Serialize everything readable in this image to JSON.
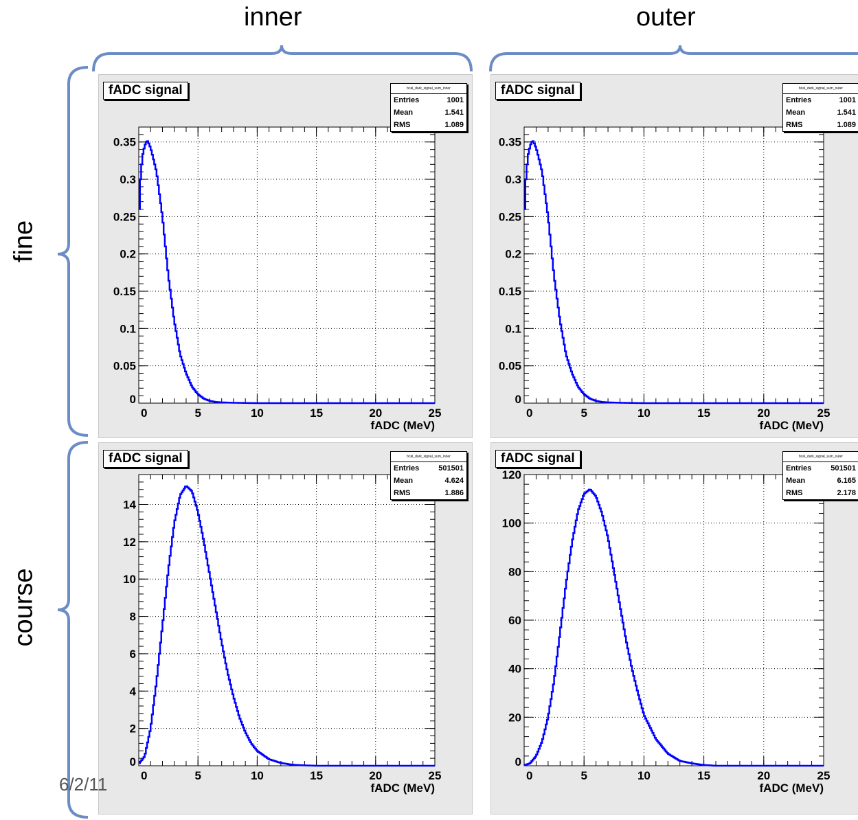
{
  "labels": {
    "col_inner": "inner",
    "col_outer": "outer",
    "row_fine": "fine",
    "row_course": "course",
    "date": "6/2/11"
  },
  "table_fragment": [
    "f",
    "f",
    "c",
    "c"
  ],
  "colors": {
    "line": "#0000ff",
    "bracket": "#6b8cc4",
    "frame": "#e8e8e8"
  },
  "chart_data": [
    {
      "type": "line",
      "title": "fADC signal",
      "stats": {
        "name": "bcal_dark_signal_sum_inner",
        "Entries": "1001",
        "Mean": "1.541",
        "RMS": "1.089"
      },
      "xlabel": "fADC (MeV)",
      "ylabel": "",
      "xlim": [
        0,
        25
      ],
      "ylim": [
        0,
        0.37
      ],
      "xticks": [
        "0",
        "5",
        "10",
        "15",
        "20",
        "25"
      ],
      "yticks": [
        [
          "0",
          0
        ],
        [
          "0.05",
          0.05
        ],
        [
          "0.1",
          0.1
        ],
        [
          "0.15",
          0.15
        ],
        [
          "0.2",
          0.2
        ],
        [
          "0.25",
          0.25
        ],
        [
          "0.3",
          0.3
        ],
        [
          "0.35",
          0.35
        ]
      ],
      "grid": true,
      "series": [
        {
          "shape": "fine",
          "x": [
            0,
            0.1,
            0.3,
            0.5,
            0.7,
            0.8,
            1.0,
            1.2,
            1.5,
            2,
            2.5,
            3,
            3.5,
            4,
            4.5,
            5,
            5.5,
            6,
            6.5,
            7,
            8,
            10,
            25
          ],
          "y": [
            0.23,
            0.29,
            0.33,
            0.345,
            0.352,
            0.35,
            0.342,
            0.33,
            0.31,
            0.25,
            0.17,
            0.11,
            0.065,
            0.04,
            0.022,
            0.012,
            0.006,
            0.003,
            0.0015,
            0.001,
            0.0005,
            0,
            0
          ]
        }
      ]
    },
    {
      "type": "line",
      "title": "fADC signal",
      "stats": {
        "name": "bcal_dark_signal_sum_outer",
        "Entries": "1001",
        "Mean": "1.541",
        "RMS": "1.089"
      },
      "xlabel": "fADC (MeV)",
      "ylabel": "",
      "xlim": [
        0,
        25
      ],
      "ylim": [
        0,
        0.37
      ],
      "xticks": [
        "0",
        "5",
        "10",
        "15",
        "20",
        "25"
      ],
      "yticks": [
        [
          "0",
          0
        ],
        [
          "0.05",
          0.05
        ],
        [
          "0.1",
          0.1
        ],
        [
          "0.15",
          0.15
        ],
        [
          "0.2",
          0.2
        ],
        [
          "0.25",
          0.25
        ],
        [
          "0.3",
          0.3
        ],
        [
          "0.35",
          0.35
        ]
      ],
      "grid": true,
      "series": [
        {
          "shape": "fine",
          "x": [
            0,
            0.1,
            0.3,
            0.5,
            0.7,
            0.8,
            1.0,
            1.2,
            1.5,
            2,
            2.5,
            3,
            3.5,
            4,
            4.5,
            5,
            5.5,
            6,
            6.5,
            7,
            8,
            10,
            25
          ],
          "y": [
            0.23,
            0.29,
            0.33,
            0.345,
            0.352,
            0.35,
            0.342,
            0.33,
            0.31,
            0.25,
            0.17,
            0.11,
            0.065,
            0.04,
            0.022,
            0.012,
            0.006,
            0.003,
            0.0015,
            0.001,
            0.0005,
            0,
            0
          ]
        }
      ]
    },
    {
      "type": "line",
      "title": "fADC signal",
      "stats": {
        "name": "bcal_dark_signal_sum_inner",
        "Entries": "501501",
        "Mean": "4.624",
        "RMS": "1.886"
      },
      "xlabel": "fADC (MeV)",
      "ylabel": "",
      "xlim": [
        0,
        25
      ],
      "ylim": [
        0,
        15.6
      ],
      "xticks": [
        "0",
        "5",
        "10",
        "15",
        "20",
        "25"
      ],
      "yticks": [
        [
          "0",
          0
        ],
        [
          "2",
          2
        ],
        [
          "4",
          4
        ],
        [
          "6",
          6
        ],
        [
          "8",
          8
        ],
        [
          "10",
          10
        ],
        [
          "12",
          12
        ],
        [
          "14",
          14
        ]
      ],
      "grid": true,
      "series": [
        {
          "shape": "course",
          "x": [
            0,
            0.5,
            1,
            1.5,
            2,
            2.5,
            3,
            3.5,
            4,
            4.5,
            5,
            5.5,
            6,
            6.5,
            7,
            7.5,
            8,
            8.5,
            9,
            9.5,
            10,
            11,
            12,
            13,
            14,
            15,
            25
          ],
          "y": [
            0.1,
            0.5,
            2.0,
            4.5,
            7.5,
            10.5,
            13.0,
            14.5,
            15.0,
            14.7,
            13.6,
            12.0,
            10.2,
            8.4,
            6.6,
            5.0,
            3.7,
            2.6,
            1.8,
            1.2,
            0.8,
            0.35,
            0.15,
            0.05,
            0.02,
            0,
            0
          ]
        }
      ]
    },
    {
      "type": "line",
      "title": "fADC signal",
      "stats": {
        "name": "bcal_dark_signal_sum_outer",
        "Entries": "501501",
        "Mean": "6.165",
        "RMS": "2.178"
      },
      "xlabel": "fADC (MeV)",
      "ylabel": "",
      "xlim": [
        0,
        25
      ],
      "ylim": [
        0,
        120
      ],
      "xticks": [
        "0",
        "5",
        "10",
        "15",
        "20",
        "25"
      ],
      "yticks": [
        [
          "0",
          0
        ],
        [
          "20",
          20
        ],
        [
          "40",
          40
        ],
        [
          "60",
          60
        ],
        [
          "80",
          80
        ],
        [
          "100",
          100
        ],
        [
          "120",
          120
        ]
      ],
      "grid": true,
      "series": [
        {
          "shape": "course",
          "x": [
            0,
            0.5,
            1,
            1.5,
            2,
            2.5,
            3,
            3.5,
            4,
            4.5,
            5,
            5.5,
            6,
            6.5,
            7,
            7.5,
            8,
            8.5,
            9,
            9.5,
            10,
            11,
            12,
            13,
            14,
            15,
            16,
            25
          ],
          "y": [
            0.2,
            1,
            4,
            10,
            20,
            35,
            55,
            75,
            92,
            105,
            112,
            114,
            111,
            104,
            94,
            80,
            66,
            52,
            40,
            30,
            21,
            11,
            5,
            2,
            1,
            0.3,
            0,
            0
          ]
        }
      ]
    }
  ]
}
